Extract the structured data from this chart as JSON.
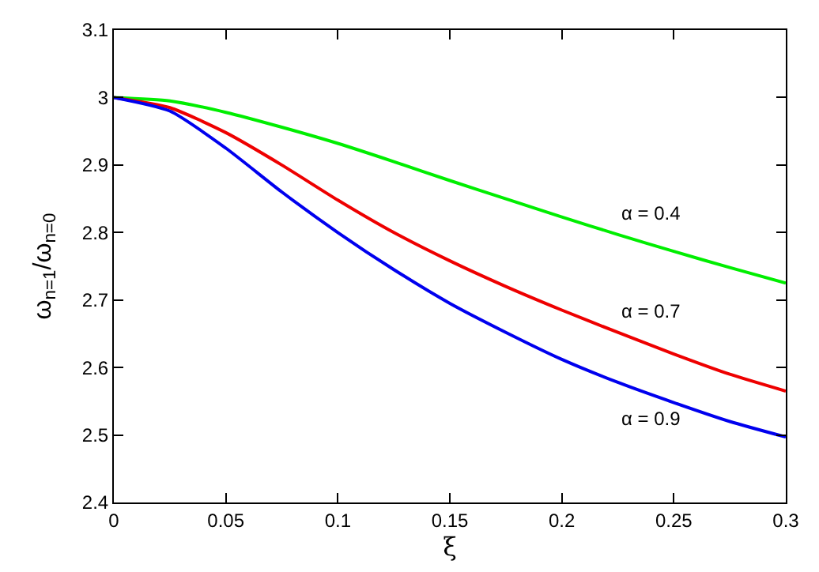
{
  "chart_data": {
    "type": "line",
    "xlabel": "ξ",
    "ylabel": "ω$_{n=1}$/ω$_{n=0}$",
    "x": [
      0,
      0.025,
      0.05,
      0.075,
      0.1,
      0.125,
      0.15,
      0.175,
      0.2,
      0.225,
      0.25,
      0.275,
      0.3
    ],
    "series": [
      {
        "name": "α = 0.4",
        "color": "#00ee00",
        "values": [
          3.0,
          2.995,
          2.978,
          2.956,
          2.932,
          2.905,
          2.877,
          2.85,
          2.823,
          2.797,
          2.772,
          2.748,
          2.725
        ]
      },
      {
        "name": "α = 0.7",
        "color": "#ee0000",
        "values": [
          3.0,
          2.985,
          2.948,
          2.9,
          2.848,
          2.8,
          2.758,
          2.72,
          2.685,
          2.652,
          2.62,
          2.59,
          2.565
        ]
      },
      {
        "name": "α = 0.9",
        "color": "#0000ee",
        "values": [
          3.0,
          2.98,
          2.925,
          2.86,
          2.8,
          2.745,
          2.695,
          2.652,
          2.612,
          2.578,
          2.548,
          2.52,
          2.497
        ]
      }
    ],
    "xlim": [
      0,
      0.3
    ],
    "xticks": [
      0,
      0.05,
      0.1,
      0.15,
      0.2,
      0.25,
      0.3
    ],
    "ylim": [
      2.4,
      3.1
    ],
    "yticks": [
      2.4,
      2.5,
      2.6,
      2.7,
      2.8,
      2.9,
      3,
      3.1
    ],
    "legend": false,
    "marker": "none",
    "line_style": "solid"
  }
}
